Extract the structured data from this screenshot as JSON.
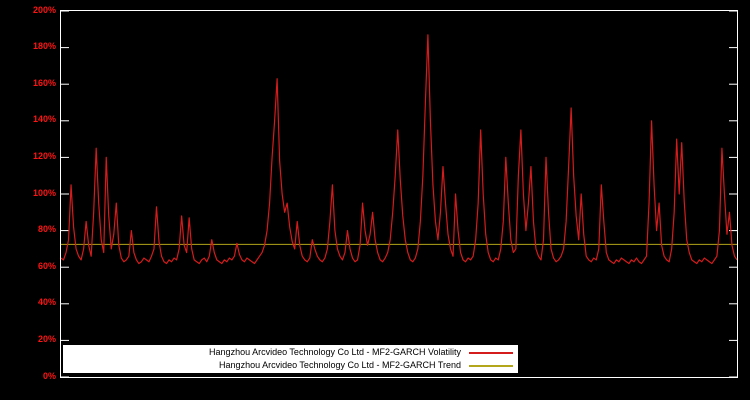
{
  "chart_data": {
    "type": "line",
    "title": "",
    "xlabel": "",
    "ylabel": "",
    "ylim": [
      0,
      200
    ],
    "ytick_step": 20,
    "ytick_suffix": "%",
    "grid": false,
    "legend_position": "bottom-center",
    "background_color": "#000000",
    "border_color": "#ffffff",
    "axis_label_color": "#ff1414",
    "series": [
      {
        "name": "Hangzhou Arcvideo Technology Co Ltd - MF2-GARCH Volatility",
        "color": "#d41c1c",
        "values": [
          65,
          64,
          68,
          75,
          105,
          82,
          70,
          66,
          64,
          70,
          85,
          72,
          66,
          90,
          125,
          95,
          75,
          68,
          120,
          88,
          70,
          78,
          95,
          72,
          65,
          63,
          64,
          66,
          80,
          68,
          64,
          62,
          63,
          65,
          64,
          63,
          66,
          70,
          93,
          74,
          66,
          63,
          62,
          64,
          63,
          65,
          64,
          70,
          88,
          72,
          68,
          87,
          70,
          64,
          63,
          62,
          64,
          65,
          63,
          66,
          75,
          68,
          64,
          63,
          62,
          64,
          63,
          65,
          64,
          66,
          73,
          67,
          64,
          63,
          65,
          64,
          63,
          62,
          64,
          66,
          68,
          72,
          80,
          95,
          120,
          140,
          163,
          118,
          100,
          90,
          95,
          82,
          74,
          70,
          85,
          72,
          66,
          64,
          63,
          65,
          75,
          70,
          66,
          64,
          63,
          65,
          70,
          85,
          105,
          80,
          70,
          66,
          64,
          68,
          80,
          70,
          65,
          63,
          64,
          72,
          95,
          80,
          72,
          78,
          90,
          75,
          68,
          64,
          63,
          65,
          68,
          75,
          90,
          110,
          135,
          108,
          88,
          75,
          68,
          64,
          63,
          65,
          70,
          85,
          110,
          150,
          187,
          140,
          105,
          85,
          75,
          90,
          115,
          95,
          78,
          70,
          66,
          100,
          80,
          68,
          64,
          63,
          65,
          64,
          66,
          75,
          95,
          135,
          100,
          78,
          68,
          64,
          63,
          65,
          64,
          70,
          85,
          120,
          95,
          75,
          68,
          70,
          110,
          135,
          100,
          80,
          95,
          115,
          85,
          70,
          66,
          64,
          75,
          120,
          90,
          70,
          65,
          63,
          64,
          66,
          70,
          85,
          115,
          147,
          110,
          88,
          75,
          100,
          78,
          66,
          64,
          63,
          65,
          64,
          70,
          105,
          85,
          68,
          64,
          63,
          62,
          64,
          63,
          65,
          64,
          63,
          62,
          64,
          63,
          65,
          63,
          62,
          64,
          66,
          95,
          140,
          105,
          80,
          95,
          72,
          66,
          64,
          63,
          70,
          90,
          130,
          100,
          128,
          96,
          75,
          68,
          64,
          63,
          62,
          64,
          63,
          65,
          64,
          63,
          62,
          64,
          66,
          80,
          125,
          100,
          78,
          90,
          72,
          66,
          64
        ]
      },
      {
        "name": "Hangzhou Arcvideo Technology Co Ltd - MF2-GARCH Trend",
        "color": "#b3a61a",
        "constant": 72.5
      }
    ]
  }
}
